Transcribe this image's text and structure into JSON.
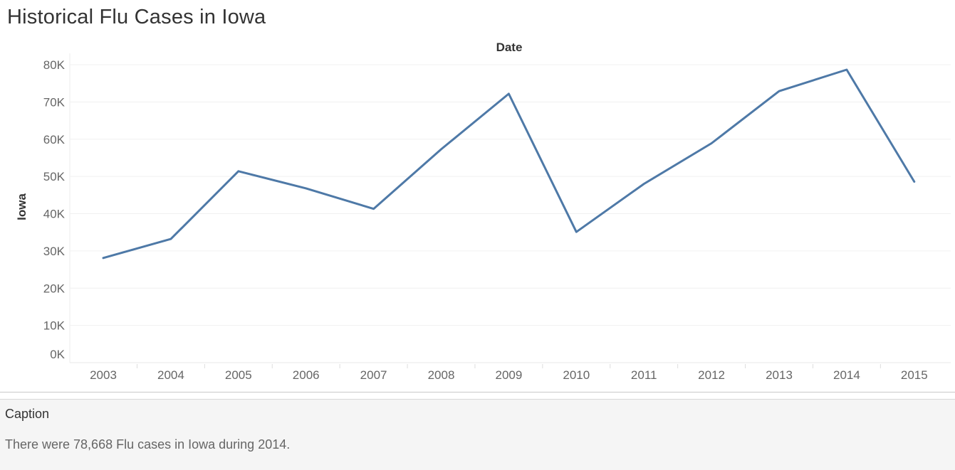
{
  "title": "Historical Flu Cases in Iowa",
  "chart_data": {
    "type": "line",
    "title": "Historical Flu Cases in Iowa",
    "xlabel": "Date",
    "ylabel": "Iowa",
    "categories": [
      "2003",
      "2004",
      "2005",
      "2006",
      "2007",
      "2008",
      "2009",
      "2010",
      "2011",
      "2012",
      "2013",
      "2014",
      "2015"
    ],
    "values": [
      28100,
      33200,
      51400,
      46800,
      41300,
      57300,
      72200,
      35100,
      48000,
      58900,
      72900,
      78668,
      48600
    ],
    "yticks": [
      0,
      10000,
      20000,
      30000,
      40000,
      50000,
      60000,
      70000,
      80000
    ],
    "ytick_labels": [
      "0K",
      "10K",
      "20K",
      "30K",
      "40K",
      "50K",
      "60K",
      "70K",
      "80K"
    ],
    "ylim": [
      0,
      80000
    ],
    "grid": true,
    "line_color": "#4e79a7"
  },
  "caption": {
    "label": "Caption",
    "text": "There were 78,668 Flu cases in Iowa during 2014."
  }
}
